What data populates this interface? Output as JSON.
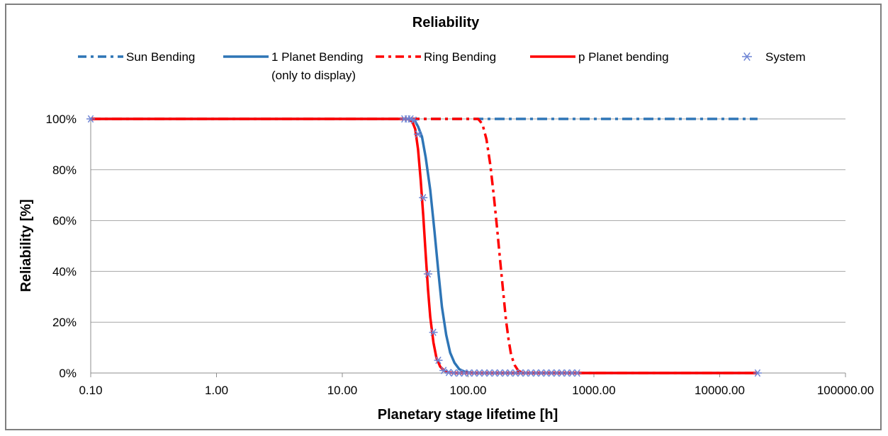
{
  "chart_data": {
    "type": "scatter",
    "title": "Reliability",
    "xlabel": "Planetary stage lifetime [h]",
    "ylabel": "Reliability [%]",
    "x_scale": "log",
    "xlim": [
      0.1,
      100000
    ],
    "ylim": [
      0,
      100
    ],
    "x_ticks": [
      "0.10",
      "1.00",
      "10.00",
      "100.00",
      "1000.00",
      "10000.00",
      "100000.00"
    ],
    "y_ticks": [
      "0%",
      "20%",
      "40%",
      "60%",
      "80%",
      "100%"
    ],
    "grid": "horizontal",
    "legend_position": "top",
    "series": [
      {
        "name": "Sun Bending",
        "color": "#2e75b6",
        "line": "dash-dot",
        "x": [
          0.1,
          20000
        ],
        "y": [
          100,
          100
        ]
      },
      {
        "name": "1 Planet Bending\n(only to display)",
        "legend_lines": [
          "1 Planet Bending",
          "(only to display)"
        ],
        "color": "#2e75b6",
        "line": "solid",
        "x": [
          0.1,
          35,
          38,
          40,
          43,
          46,
          50,
          54,
          58,
          62,
          67,
          72,
          78,
          85,
          95,
          110,
          20000
        ],
        "y": [
          100,
          100,
          99,
          97,
          93,
          85,
          72,
          56,
          40,
          26,
          15,
          8,
          4,
          1.5,
          0.4,
          0,
          0
        ]
      },
      {
        "name": "Ring Bending",
        "color": "#ff0000",
        "line": "dash-dot",
        "x": [
          0.1,
          120,
          130,
          140,
          150,
          160,
          170,
          180,
          190,
          200,
          210,
          220,
          235,
          250,
          270,
          20000
        ],
        "y": [
          100,
          100,
          98,
          92,
          82,
          70,
          57,
          44,
          32,
          21,
          13,
          7,
          3,
          1,
          0,
          0
        ]
      },
      {
        "name": "p Planet bending",
        "color": "#ff0000",
        "line": "solid",
        "x": [
          0.1,
          33,
          36,
          38,
          40,
          42,
          44,
          46,
          48,
          50,
          53,
          56,
          60,
          65,
          70,
          80,
          20000
        ],
        "y": [
          100,
          100,
          99,
          96,
          88,
          76,
          62,
          47,
          33,
          22,
          12,
          6,
          2.5,
          0.8,
          0.2,
          0,
          0
        ]
      },
      {
        "name": "System",
        "color": "#6e84d4",
        "marker": "asterisk",
        "x": [
          0.1,
          31,
          33,
          35,
          37,
          40,
          44,
          48,
          53,
          58,
          64,
          70,
          77,
          85,
          93,
          102,
          112,
          123,
          135,
          148,
          163,
          179,
          197,
          216,
          238,
          261,
          287,
          316,
          347,
          381,
          419,
          460,
          506,
          556,
          611,
          671,
          738,
          20000
        ],
        "y": [
          100,
          100,
          100,
          100,
          99.5,
          94,
          69,
          39,
          16,
          5,
          1,
          0.2,
          0,
          0,
          0,
          0,
          0,
          0,
          0,
          0,
          0,
          0,
          0,
          0,
          0,
          0,
          0,
          0,
          0,
          0,
          0,
          0,
          0,
          0,
          0,
          0,
          0,
          0
        ]
      }
    ]
  }
}
